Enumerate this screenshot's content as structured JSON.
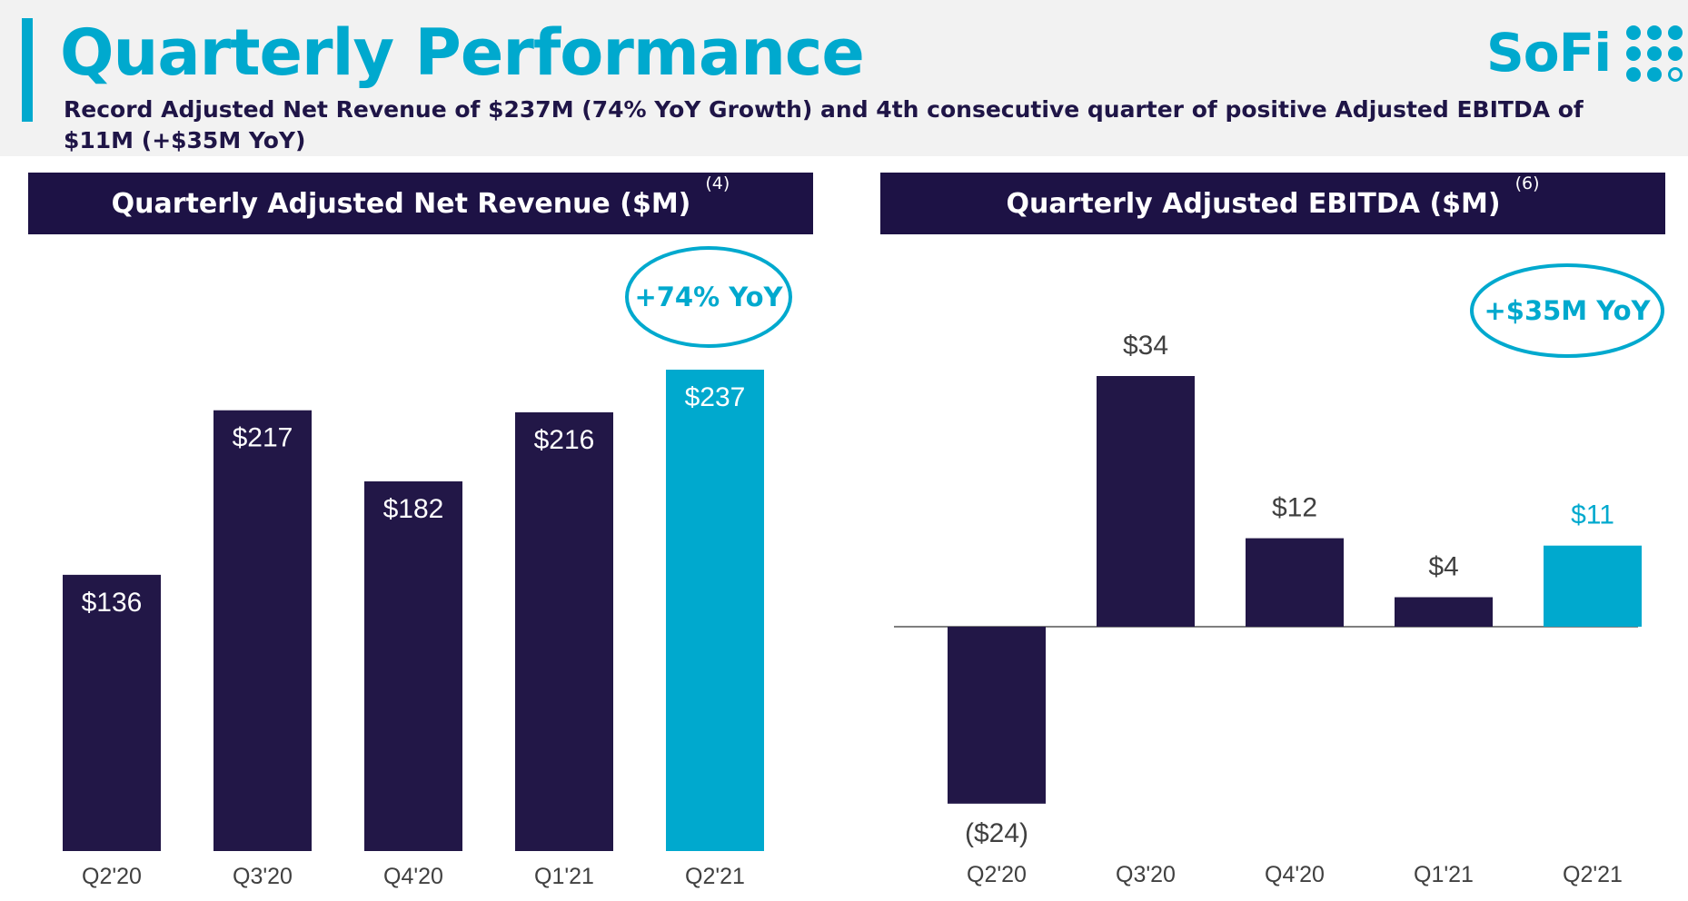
{
  "header": {
    "title": "Quarterly Performance",
    "subtitle": "Record Adjusted Net Revenue of $237M (74% YoY Growth) and 4th consecutive quarter of positive Adjusted EBITDA of $11M (+$35M YoY)",
    "logo_text": "SoFi"
  },
  "colors": {
    "brand": "#00a9ce",
    "navy": "#1d1245",
    "bar_dark": "#221747",
    "highlight": "#00a9ce"
  },
  "chart_data": [
    {
      "type": "bar",
      "title": "Quarterly Adjusted Net Revenue ($M)",
      "footnote": "(4)",
      "categories": [
        "Q2'20",
        "Q3'20",
        "Q4'20",
        "Q1'21",
        "Q2'21"
      ],
      "values": [
        136,
        217,
        182,
        216,
        237
      ],
      "value_labels": [
        "$136",
        "$217",
        "$182",
        "$216",
        "$237"
      ],
      "highlight_index": 4,
      "annotation": "+74% YoY",
      "ylim": [
        0,
        237
      ],
      "grid": false,
      "label_position": "inside-top"
    },
    {
      "type": "bar",
      "title": "Quarterly Adjusted EBITDA ($M)",
      "footnote": "(6)",
      "categories": [
        "Q2'20",
        "Q3'20",
        "Q4'20",
        "Q1'21",
        "Q2'21"
      ],
      "values": [
        -24,
        34,
        12,
        4,
        11
      ],
      "value_labels": [
        "($24)",
        "$34",
        "$12",
        "$4",
        "$11"
      ],
      "highlight_index": 4,
      "annotation": "+$35M YoY",
      "ylim": [
        -24,
        34
      ],
      "grid": false,
      "label_position": "outside"
    }
  ]
}
